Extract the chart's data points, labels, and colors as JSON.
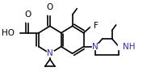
{
  "background_color": "#ffffff",
  "bond_color": "#000000",
  "bond_width": 1.2,
  "fig_width": 1.87,
  "fig_height": 1.04,
  "dpi": 100,
  "xlim": [
    0,
    1.87
  ],
  "ylim": [
    0,
    1.04
  ]
}
